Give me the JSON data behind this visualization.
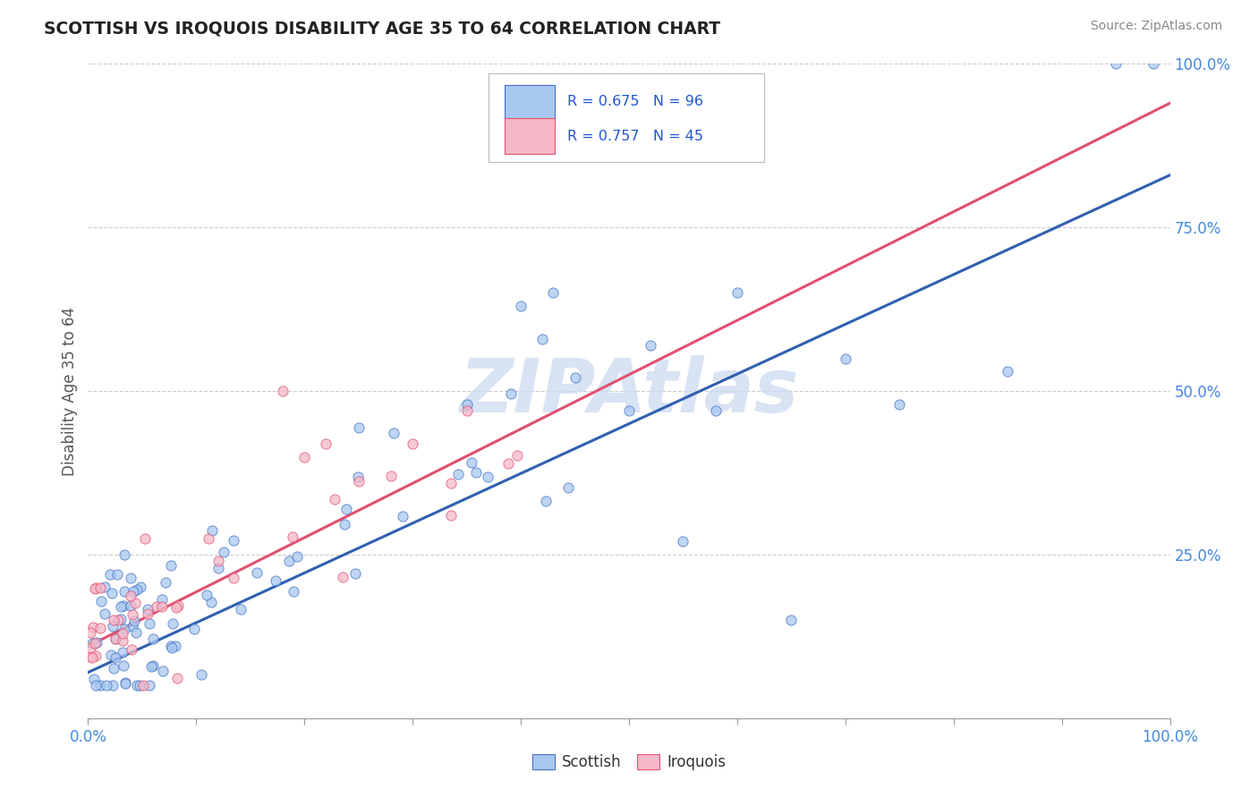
{
  "title": "SCOTTISH VS IROQUOIS DISABILITY AGE 35 TO 64 CORRELATION CHART",
  "source": "Source: ZipAtlas.com",
  "ylabel": "Disability Age 35 to 64",
  "xlim": [
    0.0,
    1.0
  ],
  "ylim": [
    0.0,
    1.0
  ],
  "scottish_R": 0.675,
  "scottish_N": 96,
  "iroquois_R": 0.757,
  "iroquois_N": 45,
  "scottish_color": "#a8c8f0",
  "iroquois_color": "#f5b8c8",
  "scottish_edge_color": "#4472c4",
  "iroquois_edge_color": "#e05070",
  "scottish_line_color": "#3060b0",
  "iroquois_line_color": "#e05070",
  "legend_box_color": "#aaaaaa",
  "ytick_color": "#4488dd",
  "xtick_color": "#4488dd",
  "watermark_color": "#c8d8f0",
  "watermark_text": "ZIPAtlas",
  "legend_blue_fill": "#a8c8f0",
  "legend_pink_fill": "#f5b8c8",
  "scottish_label": "Scottish",
  "iroquois_label": "Iroquois"
}
